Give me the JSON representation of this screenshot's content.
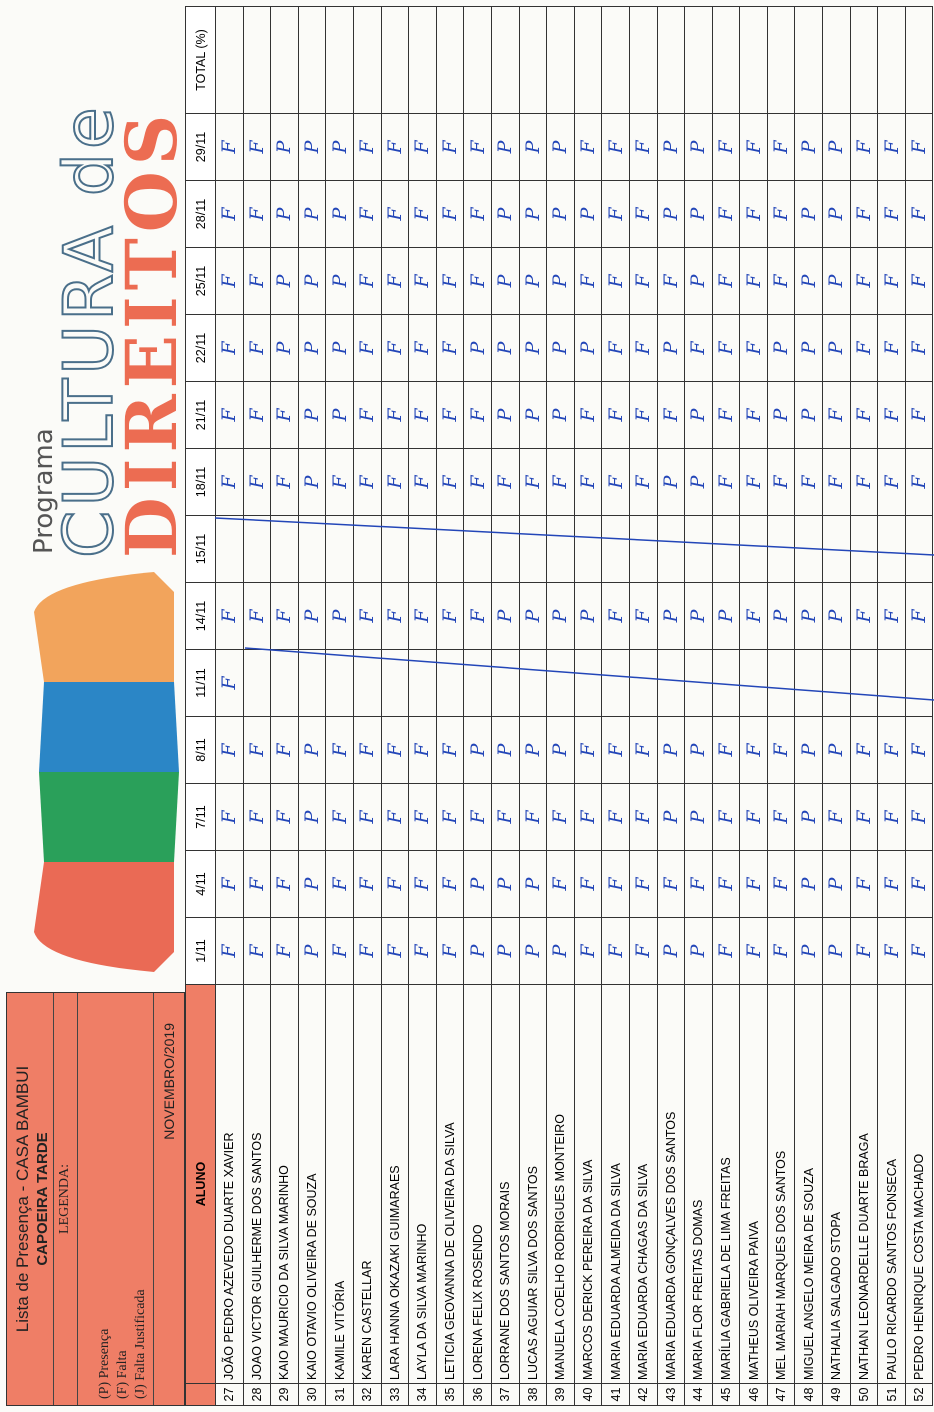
{
  "header": {
    "title": "Lista de Presença - CASA BAMBUI",
    "subtitle": "CAPOEIRA TARDE",
    "legend_title": "LEGENDA:",
    "legend": [
      "(P) Presença",
      "(F) Falta",
      "(J) Falta Justificada"
    ],
    "month": "NOVEMBRO/2019"
  },
  "logo": {
    "program": "Programa",
    "line1": "CULTURA de",
    "line2": "DIREITOS"
  },
  "table": {
    "columns": [
      "ALUNO",
      "1/11",
      "4/11",
      "7/11",
      "8/11",
      "11/11",
      "14/11",
      "15/11",
      "18/11",
      "21/11",
      "22/11",
      "25/11",
      "28/11",
      "29/11",
      "TOTAL (%)"
    ],
    "rows": [
      {
        "number": 27,
        "name": "JOÃO PEDRO AZEVEDO DUARTE XAVIER",
        "marks": [
          "F",
          "F",
          "F",
          "F",
          "F",
          "F",
          null,
          "F",
          "F",
          "F",
          "F",
          "F",
          "F"
        ]
      },
      {
        "number": 28,
        "name": "JOAO VICTOR GUILHERME DOS SANTOS",
        "marks": [
          "F",
          "F",
          "F",
          "F",
          null,
          "F",
          null,
          "F",
          "F",
          "F",
          "F",
          "F",
          "F"
        ]
      },
      {
        "number": 29,
        "name": "KAIO MAURICIO DA SILVA MARINHO",
        "marks": [
          "F",
          "F",
          "F",
          "F",
          null,
          "F",
          null,
          "F",
          "F",
          "P",
          "P",
          "P",
          "P"
        ]
      },
      {
        "number": 30,
        "name": "KAIO OTAVIO OLIVEIRA DE SOUZA",
        "marks": [
          "P",
          "P",
          "P",
          "P",
          null,
          "P",
          null,
          "P",
          "P",
          "P",
          "P",
          "P",
          "P"
        ]
      },
      {
        "number": 31,
        "name": "KAMILE  VITÓRIA",
        "marks": [
          "F",
          "F",
          "F",
          "F",
          null,
          "P",
          null,
          "F",
          "P",
          "P",
          "P",
          "P",
          "P"
        ]
      },
      {
        "number": 32,
        "name": "KAREN CASTELLAR",
        "marks": [
          "F",
          "F",
          "F",
          "F",
          null,
          "F",
          null,
          "F",
          "F",
          "F",
          "F",
          "F",
          "F"
        ]
      },
      {
        "number": 33,
        "name": "LARA HANNA OKAZAKI GUIMARAES",
        "marks": [
          "F",
          "F",
          "F",
          "F",
          null,
          "F",
          null,
          "F",
          "F",
          "F",
          "F",
          "F",
          "F"
        ]
      },
      {
        "number": 34,
        "name": "LAYLA DA SILVA MARINHO",
        "marks": [
          "F",
          "F",
          "F",
          "F",
          null,
          "F",
          null,
          "F",
          "F",
          "F",
          "F",
          "F",
          "F"
        ]
      },
      {
        "number": 35,
        "name": "LETICIA GEOVANNA DE OLIVEIRA DA SILVA",
        "marks": [
          "F",
          "F",
          "F",
          "F",
          null,
          "F",
          null,
          "F",
          "F",
          "F",
          "F",
          "F",
          "F"
        ]
      },
      {
        "number": 36,
        "name": "LORENA FELIX ROSENDO",
        "marks": [
          "P",
          "P",
          "F",
          "P",
          null,
          "F",
          null,
          "F",
          "F",
          "P",
          "F",
          "F",
          "F"
        ]
      },
      {
        "number": 37,
        "name": "LORRANE DOS SANTOS MORAIS",
        "marks": [
          "P",
          "P",
          "F",
          "P",
          null,
          "P",
          null,
          "F",
          "P",
          "P",
          "P",
          "P",
          "P"
        ]
      },
      {
        "number": 38,
        "name": "LUCAS AGUIAR SILVA DOS SANTOS",
        "marks": [
          "P",
          "P",
          "F",
          "P",
          null,
          "P",
          null,
          "F",
          "P",
          "P",
          "P",
          "P",
          "P"
        ]
      },
      {
        "number": 39,
        "name": "MANUELA COELHO RODRIGUES MONTEIRO",
        "marks": [
          "P",
          "F",
          "F",
          "P",
          null,
          "P",
          null,
          "F",
          "P",
          "P",
          "P",
          "P",
          "P"
        ]
      },
      {
        "number": 40,
        "name": "MARCOS DERICK PEREIRA DA SILVA",
        "marks": [
          "F",
          "F",
          "F",
          "F",
          null,
          "P",
          null,
          "F",
          "F",
          "P",
          "F",
          "P",
          "F"
        ]
      },
      {
        "number": 41,
        "name": "MARIA EDUARDA ALMEIDA DA SILVA",
        "marks": [
          "F",
          "F",
          "F",
          "F",
          null,
          "F",
          null,
          "F",
          "F",
          "F",
          "F",
          "F",
          "F"
        ]
      },
      {
        "number": 42,
        "name": "MARIA EDUARDA CHAGAS DA SILVA",
        "marks": [
          "F",
          "F",
          "F",
          "F",
          null,
          "F",
          null,
          "F",
          "F",
          "F",
          "F",
          "F",
          "F"
        ]
      },
      {
        "number": 43,
        "name": "MARIA EDUARDA GONÇALVES DOS SANTOS",
        "marks": [
          "P",
          "F",
          "P",
          "P",
          null,
          "P",
          null,
          "P",
          "F",
          "P",
          "F",
          "P",
          "P"
        ]
      },
      {
        "number": 44,
        "name": "MARIA FLOR FREITAS DOMAS",
        "marks": [
          "P",
          "F",
          "P",
          "P",
          null,
          "P",
          null,
          "P",
          "P",
          "F",
          "P",
          "P",
          "P"
        ]
      },
      {
        "number": 45,
        "name": "MARÍLIA GABRIELA DE LIMA FREITAS",
        "marks": [
          "F",
          "F",
          "F",
          "F",
          null,
          "P",
          null,
          "F",
          "F",
          "F",
          "F",
          "F",
          "F"
        ]
      },
      {
        "number": 46,
        "name": "MATHEUS OLIVEIRA PAIVA",
        "marks": [
          "F",
          "F",
          "F",
          "F",
          null,
          "F",
          null,
          "F",
          "F",
          "F",
          "F",
          "F",
          "F"
        ]
      },
      {
        "number": 47,
        "name": "MEL MARIAH MARQUES DOS SANTOS",
        "marks": [
          "F",
          "F",
          "F",
          "F",
          null,
          "P",
          null,
          "F",
          "P",
          "P",
          "F",
          "F",
          "F"
        ]
      },
      {
        "number": 48,
        "name": "MIGUEL ANGELO MEIRA DE SOUZA",
        "marks": [
          "P",
          "P",
          "P",
          "P",
          null,
          "P",
          null,
          "F",
          "P",
          "P",
          "P",
          "P",
          "P"
        ]
      },
      {
        "number": 49,
        "name": "NATHALIA SALGADO STOPA",
        "marks": [
          "P",
          "P",
          "F",
          "P",
          null,
          "P",
          null,
          "F",
          "F",
          "P",
          "P",
          "P",
          "P"
        ]
      },
      {
        "number": 50,
        "name": "NATHAN LEONARDELLE DUARTE BRAGA",
        "marks": [
          "F",
          "F",
          "F",
          "F",
          null,
          "F",
          null,
          "F",
          "F",
          "F",
          "F",
          "F",
          "F"
        ]
      },
      {
        "number": 51,
        "name": "PAULO RICARDO SANTOS FONSECA",
        "marks": [
          "F",
          "F",
          "F",
          "F",
          null,
          "F",
          null,
          "F",
          "F",
          "F",
          "F",
          "F",
          "F"
        ]
      },
      {
        "number": 52,
        "name": "PEDRO HENRIQUE COSTA MACHADO",
        "marks": [
          "F",
          "F",
          "F",
          "F",
          null,
          "F",
          null,
          "F",
          "F",
          "F",
          "F",
          "F",
          "F"
        ]
      }
    ]
  }
}
